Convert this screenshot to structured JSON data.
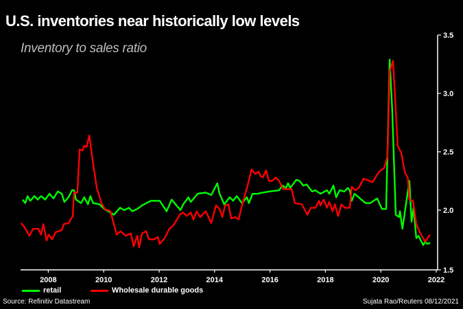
{
  "chart_data": {
    "type": "line",
    "title": "U.S. inventories near historically low levels",
    "subtitle": "Inventory to sales ratio",
    "xlabel": "",
    "ylabel": "",
    "xlim": [
      2007,
      2022
    ],
    "ylim": [
      1.5,
      3.5
    ],
    "x_ticks": [
      2008,
      2010,
      2012,
      2014,
      2016,
      2018,
      2020,
      2022
    ],
    "x_tick_labels": [
      "2008",
      "2010",
      "2012",
      "2014",
      "2016",
      "2018",
      "2020",
      "2022"
    ],
    "y_ticks": [
      1.5,
      2.0,
      2.5,
      3.0,
      3.5
    ],
    "y_tick_labels": [
      "1.5",
      "2.0",
      "2.5",
      "3.0",
      "3.5"
    ],
    "y_axis_side": "right",
    "grid": false,
    "legend_position": "bottom-left",
    "series": [
      {
        "name": "retail",
        "color": "#00ff00",
        "x": [
          2007.07,
          2007.17,
          2007.25,
          2007.35,
          2007.5,
          2007.62,
          2007.74,
          2007.89,
          2008.04,
          2008.19,
          2008.34,
          2008.49,
          2008.58,
          2008.73,
          2008.86,
          2008.93,
          2009.0,
          2009.18,
          2009.3,
          2009.43,
          2009.52,
          2009.62,
          2009.85,
          2010.02,
          2010.17,
          2010.37,
          2010.59,
          2010.74,
          2010.91,
          2011.03,
          2011.21,
          2011.38,
          2011.7,
          2012.02,
          2012.27,
          2012.45,
          2012.77,
          2012.87,
          2013.06,
          2013.14,
          2013.39,
          2013.68,
          2013.88,
          2014.1,
          2014.18,
          2014.35,
          2014.55,
          2014.67,
          2014.8,
          2014.99,
          2015.17,
          2015.24,
          2015.37,
          2015.54,
          2015.74,
          2015.98,
          2016.33,
          2016.45,
          2016.58,
          2016.65,
          2016.73,
          2016.95,
          2017.07,
          2017.2,
          2017.32,
          2017.52,
          2017.64,
          2017.82,
          2018.06,
          2018.14,
          2018.29,
          2018.39,
          2018.51,
          2018.68,
          2018.81,
          2018.88,
          2018.95,
          2019.05,
          2019.2,
          2019.45,
          2019.62,
          2019.87,
          2020.04,
          2020.19,
          2020.32,
          2020.41,
          2020.54,
          2020.66,
          2020.69,
          2020.78,
          2021.03,
          2021.11,
          2021.18,
          2021.28,
          2021.36,
          2021.53,
          2021.6,
          2021.68,
          2021.78
        ],
        "values": [
          2.09,
          2.06,
          2.12,
          2.08,
          2.12,
          2.09,
          2.12,
          2.09,
          2.14,
          2.1,
          2.16,
          2.14,
          2.07,
          2.11,
          2.17,
          2.17,
          2.09,
          2.06,
          2.11,
          2.05,
          2.12,
          2.06,
          2.05,
          2.01,
          1.99,
          1.96,
          2.02,
          2.0,
          2.02,
          1.99,
          2.01,
          2.04,
          2.08,
          2.08,
          1.99,
          2.09,
          2.0,
          2.05,
          2.11,
          2.07,
          2.14,
          2.15,
          2.13,
          2.23,
          2.14,
          2.05,
          2.11,
          2.08,
          2.12,
          2.06,
          2.11,
          2.06,
          2.14,
          2.14,
          2.15,
          2.16,
          2.17,
          2.21,
          2.19,
          2.23,
          2.19,
          2.26,
          2.25,
          2.21,
          2.22,
          2.16,
          2.17,
          2.14,
          2.17,
          2.14,
          2.21,
          2.11,
          2.17,
          2.16,
          2.19,
          2.17,
          2.08,
          2.14,
          2.11,
          2.06,
          2.06,
          2.1,
          2.01,
          2.01,
          3.29,
          2.86,
          1.96,
          1.94,
          1.99,
          1.84,
          2.25,
          1.9,
          2.02,
          1.76,
          1.78,
          1.7,
          1.73,
          1.71,
          1.72
        ]
      },
      {
        "name": "Wholesale durable goods",
        "color": "#ff0000",
        "x": [
          2007.02,
          2007.15,
          2007.32,
          2007.45,
          2007.64,
          2007.74,
          2007.82,
          2007.94,
          2008.01,
          2008.14,
          2008.26,
          2008.49,
          2008.56,
          2008.73,
          2008.88,
          2008.93,
          2009.05,
          2009.13,
          2009.23,
          2009.3,
          2009.38,
          2009.48,
          2009.6,
          2009.75,
          2009.92,
          2010.04,
          2010.24,
          2010.47,
          2010.61,
          2010.79,
          2010.98,
          2011.08,
          2011.21,
          2011.28,
          2011.38,
          2011.53,
          2011.63,
          2011.83,
          2011.95,
          2012.02,
          2012.2,
          2012.37,
          2012.52,
          2012.74,
          2012.87,
          2012.99,
          2013.14,
          2013.24,
          2013.36,
          2013.48,
          2013.68,
          2013.88,
          2014.05,
          2014.18,
          2014.28,
          2014.38,
          2014.5,
          2014.6,
          2014.75,
          2014.87,
          2014.99,
          2015.17,
          2015.34,
          2015.46,
          2015.59,
          2015.66,
          2015.74,
          2015.86,
          2015.96,
          2016.08,
          2016.21,
          2016.33,
          2016.48,
          2016.65,
          2016.78,
          2016.9,
          2017.15,
          2017.35,
          2017.47,
          2017.64,
          2017.77,
          2017.82,
          2017.94,
          2018.06,
          2018.14,
          2018.26,
          2018.34,
          2018.46,
          2018.58,
          2018.71,
          2018.88,
          2018.95,
          2019.08,
          2019.2,
          2019.38,
          2019.7,
          2019.94,
          2020.12,
          2020.24,
          2020.32,
          2020.44,
          2020.61,
          2020.74,
          2020.86,
          2020.98,
          2021.03,
          2021.16,
          2021.28,
          2021.43,
          2021.6,
          2021.78
        ],
        "values": [
          1.89,
          1.85,
          1.78,
          1.84,
          1.84,
          1.79,
          1.88,
          1.74,
          1.79,
          1.75,
          1.81,
          1.83,
          1.88,
          1.89,
          1.95,
          2.15,
          2.15,
          2.52,
          2.51,
          2.55,
          2.54,
          2.64,
          2.43,
          2.19,
          2.06,
          2.01,
          1.99,
          1.79,
          1.82,
          1.78,
          1.8,
          1.69,
          1.78,
          1.68,
          1.8,
          1.82,
          1.75,
          1.75,
          1.77,
          1.71,
          1.76,
          1.84,
          1.87,
          1.96,
          1.98,
          1.95,
          1.98,
          1.92,
          1.99,
          1.94,
          1.99,
          1.89,
          2.04,
          2.01,
          1.94,
          2.04,
          2.05,
          1.93,
          1.94,
          1.92,
          2.04,
          2.19,
          2.35,
          2.31,
          2.33,
          2.29,
          2.28,
          2.34,
          2.25,
          2.25,
          2.28,
          2.25,
          2.18,
          2.18,
          2.18,
          2.06,
          2.05,
          1.96,
          2.02,
          2.02,
          2.08,
          2.04,
          2.09,
          2.02,
          2.07,
          1.99,
          2.05,
          1.95,
          2.05,
          2.02,
          2.02,
          2.2,
          2.17,
          2.19,
          2.27,
          2.24,
          2.33,
          2.36,
          2.46,
          3.19,
          3.28,
          2.55,
          2.49,
          2.33,
          2.27,
          2.09,
          2.08,
          1.88,
          1.8,
          1.73,
          1.79
        ]
      }
    ],
    "source": "Source: Refinitiv Datastream",
    "credit": "Sujata Rao/Reuters 08/12/2021"
  }
}
